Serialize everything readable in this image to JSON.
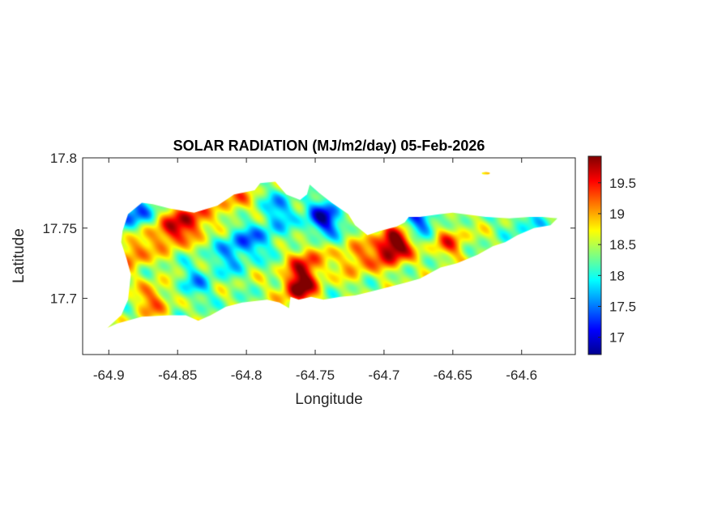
{
  "chart_data": {
    "type": "heatmap",
    "title": "SOLAR RADIATION (MJ/m2/day) 05-Feb-2026",
    "xlabel": "Longitude",
    "ylabel": "Latitude",
    "xlim": [
      -64.919,
      -64.561
    ],
    "ylim": [
      17.66,
      17.8
    ],
    "xticks": [
      -64.9,
      -64.85,
      -64.8,
      -64.75,
      -64.7,
      -64.65,
      -64.6
    ],
    "xtick_labels": [
      "-64.9",
      "-64.85",
      "-64.8",
      "-64.75",
      "-64.7",
      "-64.65",
      "-64.6"
    ],
    "yticks": [
      17.7,
      17.75,
      17.8
    ],
    "ytick_labels": [
      "17.7",
      "17.75",
      "17.8"
    ],
    "colormap": "jet",
    "colorbar": {
      "range": [
        16.72,
        19.93
      ],
      "ticks": [
        17,
        17.5,
        18,
        18.5,
        19,
        19.5
      ],
      "tick_labels": [
        "17",
        "17.5",
        "18",
        "18.5",
        "19",
        "19.5"
      ],
      "location": "right"
    },
    "grid": false,
    "background_value": 18.4,
    "island_outline_lonlat": [
      [
        -64.901,
        17.679
      ],
      [
        -64.891,
        17.688
      ],
      [
        -64.886,
        17.699
      ],
      [
        -64.884,
        17.717
      ],
      [
        -64.887,
        17.728
      ],
      [
        -64.891,
        17.74
      ],
      [
        -64.89,
        17.748
      ],
      [
        -64.886,
        17.76
      ],
      [
        -64.876,
        17.768
      ],
      [
        -64.868,
        17.767
      ],
      [
        -64.856,
        17.764
      ],
      [
        -64.838,
        17.761
      ],
      [
        -64.821,
        17.766
      ],
      [
        -64.809,
        17.774
      ],
      [
        -64.794,
        17.777
      ],
      [
        -64.79,
        17.782
      ],
      [
        -64.779,
        17.783
      ],
      [
        -64.771,
        17.774
      ],
      [
        -64.761,
        17.77
      ],
      [
        -64.756,
        17.774
      ],
      [
        -64.754,
        17.781
      ],
      [
        -64.747,
        17.775
      ],
      [
        -64.738,
        17.768
      ],
      [
        -64.726,
        17.76
      ],
      [
        -64.721,
        17.752
      ],
      [
        -64.712,
        17.745
      ],
      [
        -64.703,
        17.748
      ],
      [
        -64.691,
        17.751
      ],
      [
        -64.685,
        17.754
      ],
      [
        -64.682,
        17.758
      ],
      [
        -64.674,
        17.758
      ],
      [
        -64.659,
        17.76
      ],
      [
        -64.65,
        17.761
      ],
      [
        -64.626,
        17.758
      ],
      [
        -64.609,
        17.757
      ],
      [
        -64.594,
        17.758
      ],
      [
        -64.585,
        17.758
      ],
      [
        -64.574,
        17.757
      ],
      [
        -64.579,
        17.752
      ],
      [
        -64.591,
        17.75
      ],
      [
        -64.603,
        17.745
      ],
      [
        -64.612,
        17.74
      ],
      [
        -64.621,
        17.737
      ],
      [
        -64.632,
        17.731
      ],
      [
        -64.647,
        17.725
      ],
      [
        -64.659,
        17.722
      ],
      [
        -64.674,
        17.714
      ],
      [
        -64.685,
        17.711
      ],
      [
        -64.697,
        17.708
      ],
      [
        -64.709,
        17.705
      ],
      [
        -64.721,
        17.702
      ],
      [
        -64.732,
        17.701
      ],
      [
        -64.744,
        17.699
      ],
      [
        -64.753,
        17.701
      ],
      [
        -64.762,
        17.699
      ],
      [
        -64.768,
        17.701
      ],
      [
        -64.769,
        17.693
      ],
      [
        -64.776,
        17.697
      ],
      [
        -64.785,
        17.699
      ],
      [
        -64.803,
        17.697
      ],
      [
        -64.815,
        17.694
      ],
      [
        -64.826,
        17.688
      ],
      [
        -64.835,
        17.684
      ],
      [
        -64.844,
        17.688
      ],
      [
        -64.856,
        17.688
      ],
      [
        -64.876,
        17.687
      ],
      [
        -64.894,
        17.682
      ]
    ],
    "islet": {
      "lon": -64.626,
      "lat": 17.789,
      "value": 17.7
    },
    "hotspots_lon_lat_value": [
      [
        -64.838,
        17.757,
        19.5
      ],
      [
        -64.856,
        17.748,
        19.6
      ],
      [
        -64.882,
        17.734,
        19.3
      ],
      [
        -64.882,
        17.761,
        17.3
      ],
      [
        -64.803,
        17.74,
        17.6
      ],
      [
        -64.744,
        17.757,
        17.0
      ],
      [
        -64.785,
        17.745,
        17.9
      ],
      [
        -64.815,
        17.728,
        17.9
      ],
      [
        -64.762,
        17.708,
        19.9
      ],
      [
        -64.756,
        17.725,
        19.4
      ],
      [
        -64.697,
        17.734,
        19.4
      ],
      [
        -64.691,
        17.74,
        19.5
      ],
      [
        -64.653,
        17.74,
        19.2
      ],
      [
        -64.721,
        17.728,
        19.2
      ],
      [
        -64.674,
        17.757,
        17.3
      ],
      [
        -64.597,
        17.756,
        17.9
      ],
      [
        -64.838,
        17.711,
        17.8
      ],
      [
        -64.868,
        17.699,
        19.2
      ],
      [
        -64.809,
        17.771,
        19.1
      ],
      [
        -64.775,
        17.765,
        17.7
      ]
    ]
  }
}
